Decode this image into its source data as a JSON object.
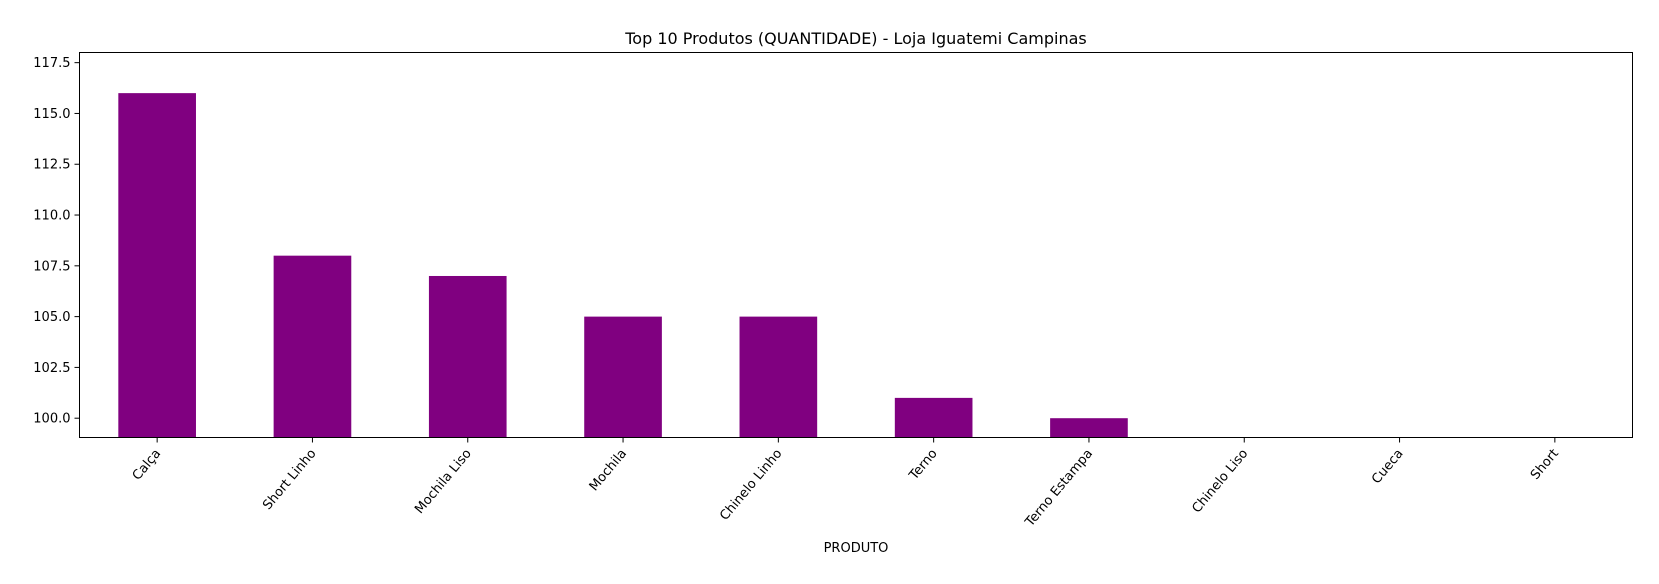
{
  "chart_data": {
    "type": "bar",
    "title": "Top 10 Produtos (QUANTIDADE) - Loja Iguatemi Campinas",
    "xlabel": "PRODUTO",
    "ylabel": "",
    "categories": [
      "Calça",
      "Short Linho",
      "Mochila Liso",
      "Mochila",
      "Chinelo Linho",
      "Terno",
      "Terno Estampa",
      "Chinelo Liso",
      "Cueca",
      "Short"
    ],
    "values": [
      116,
      108,
      107,
      105,
      105,
      101,
      100,
      99,
      99,
      99
    ],
    "ylim": [
      99.05,
      118.0
    ],
    "yticks": [
      100.0,
      102.5,
      105.0,
      107.5,
      110.0,
      112.5,
      115.0,
      117.5
    ],
    "ytick_labels": [
      "100.0",
      "102.5",
      "105.0",
      "107.5",
      "110.0",
      "112.5",
      "115.0",
      "117.5"
    ],
    "bar_color": "#800080",
    "grid": false,
    "legend": "none"
  }
}
